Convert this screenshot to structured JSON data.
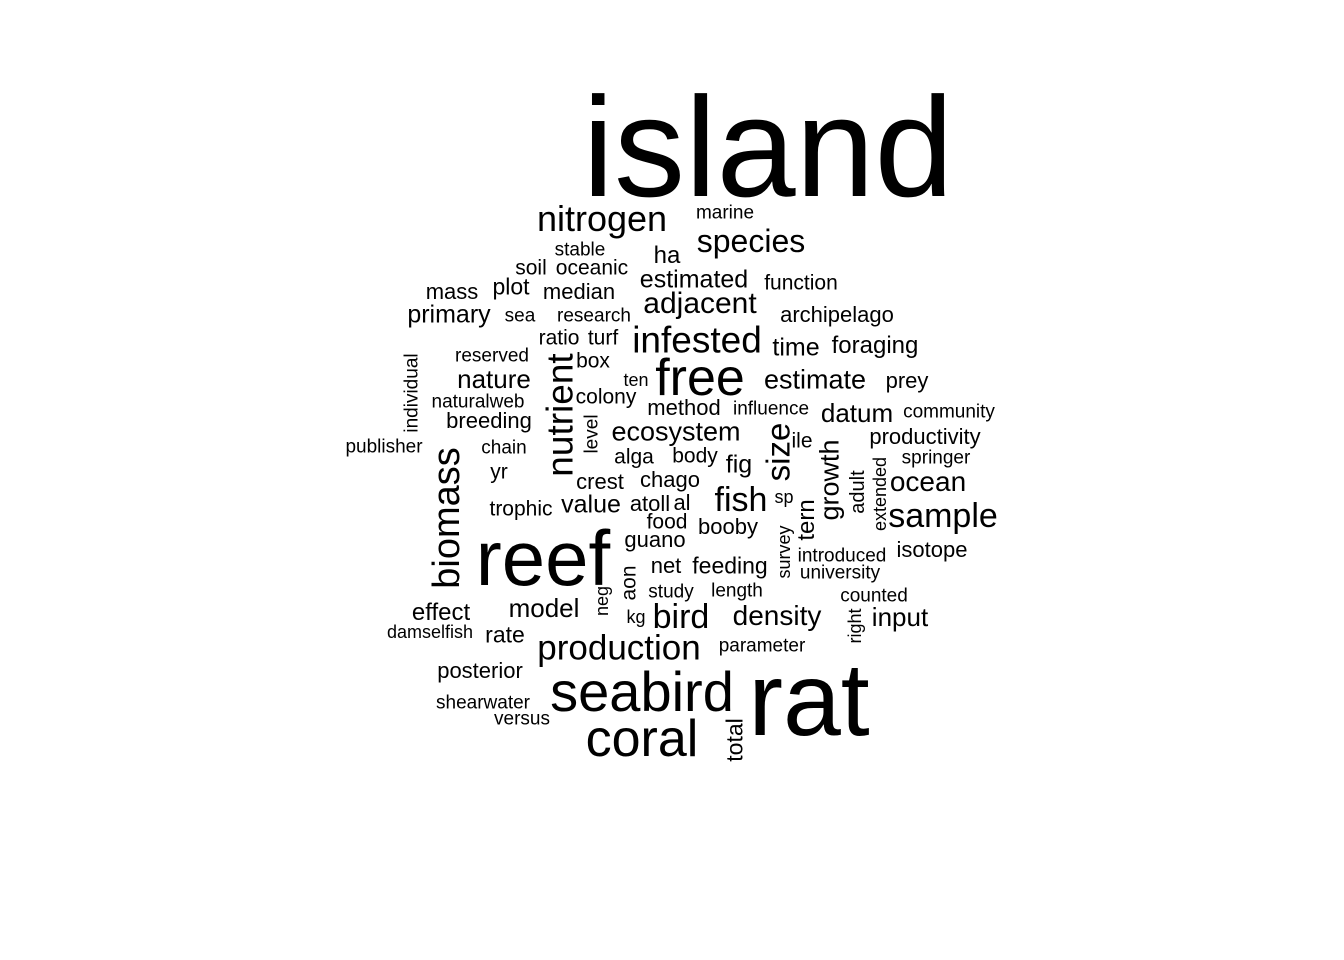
{
  "words": [
    {
      "text": "island"
    },
    {
      "text": "rat"
    },
    {
      "text": "reef"
    },
    {
      "text": "seabird"
    },
    {
      "text": "coral"
    },
    {
      "text": "free"
    },
    {
      "text": "nitrogen"
    },
    {
      "text": "infested"
    },
    {
      "text": "production"
    },
    {
      "text": "biomass"
    },
    {
      "text": "nutrient"
    },
    {
      "text": "species"
    },
    {
      "text": "sample"
    },
    {
      "text": "bird"
    },
    {
      "text": "adjacent"
    },
    {
      "text": "fish"
    },
    {
      "text": "size"
    },
    {
      "text": "ecosystem"
    },
    {
      "text": "density"
    },
    {
      "text": "estimate"
    },
    {
      "text": "ocean"
    },
    {
      "text": "nature"
    },
    {
      "text": "datum"
    },
    {
      "text": "model"
    },
    {
      "text": "growth"
    },
    {
      "text": "estimated"
    },
    {
      "text": "marine"
    },
    {
      "text": "stable"
    },
    {
      "text": "ha"
    },
    {
      "text": "soil"
    },
    {
      "text": "oceanic"
    },
    {
      "text": "function"
    },
    {
      "text": "mass"
    },
    {
      "text": "plot"
    },
    {
      "text": "median"
    },
    {
      "text": "primary"
    },
    {
      "text": "sea"
    },
    {
      "text": "research"
    },
    {
      "text": "archipelago"
    },
    {
      "text": "ratio"
    },
    {
      "text": "turf"
    },
    {
      "text": "time"
    },
    {
      "text": "foraging"
    },
    {
      "text": "reserved"
    },
    {
      "text": "box"
    },
    {
      "text": "individual"
    },
    {
      "text": "ten"
    },
    {
      "text": "prey"
    },
    {
      "text": "naturalweb"
    },
    {
      "text": "colony"
    },
    {
      "text": "method"
    },
    {
      "text": "influence"
    },
    {
      "text": "community"
    },
    {
      "text": "breeding"
    },
    {
      "text": "level"
    },
    {
      "text": "productivity"
    },
    {
      "text": "publisher"
    },
    {
      "text": "chain"
    },
    {
      "text": "alga"
    },
    {
      "text": "body"
    },
    {
      "text": "fig"
    },
    {
      "text": "ile"
    },
    {
      "text": "springer"
    },
    {
      "text": "yr"
    },
    {
      "text": "crest"
    },
    {
      "text": "chago"
    },
    {
      "text": "adult"
    },
    {
      "text": "extended"
    },
    {
      "text": "trophic"
    },
    {
      "text": "value"
    },
    {
      "text": "atoll"
    },
    {
      "text": "al"
    },
    {
      "text": "sp"
    },
    {
      "text": "food"
    },
    {
      "text": "booby"
    },
    {
      "text": "tern"
    },
    {
      "text": "guano"
    },
    {
      "text": "survey"
    },
    {
      "text": "introduced"
    },
    {
      "text": "isotope"
    },
    {
      "text": "net"
    },
    {
      "text": "feeding"
    },
    {
      "text": "university"
    },
    {
      "text": "aon"
    },
    {
      "text": "study"
    },
    {
      "text": "length"
    },
    {
      "text": "neg"
    },
    {
      "text": "counted"
    },
    {
      "text": "effect"
    },
    {
      "text": "kg"
    },
    {
      "text": "input"
    },
    {
      "text": "damselfish"
    },
    {
      "text": "rate"
    },
    {
      "text": "right"
    },
    {
      "text": "parameter"
    },
    {
      "text": "posterior"
    },
    {
      "text": "shearwater"
    },
    {
      "text": "versus"
    },
    {
      "text": "total"
    }
  ]
}
